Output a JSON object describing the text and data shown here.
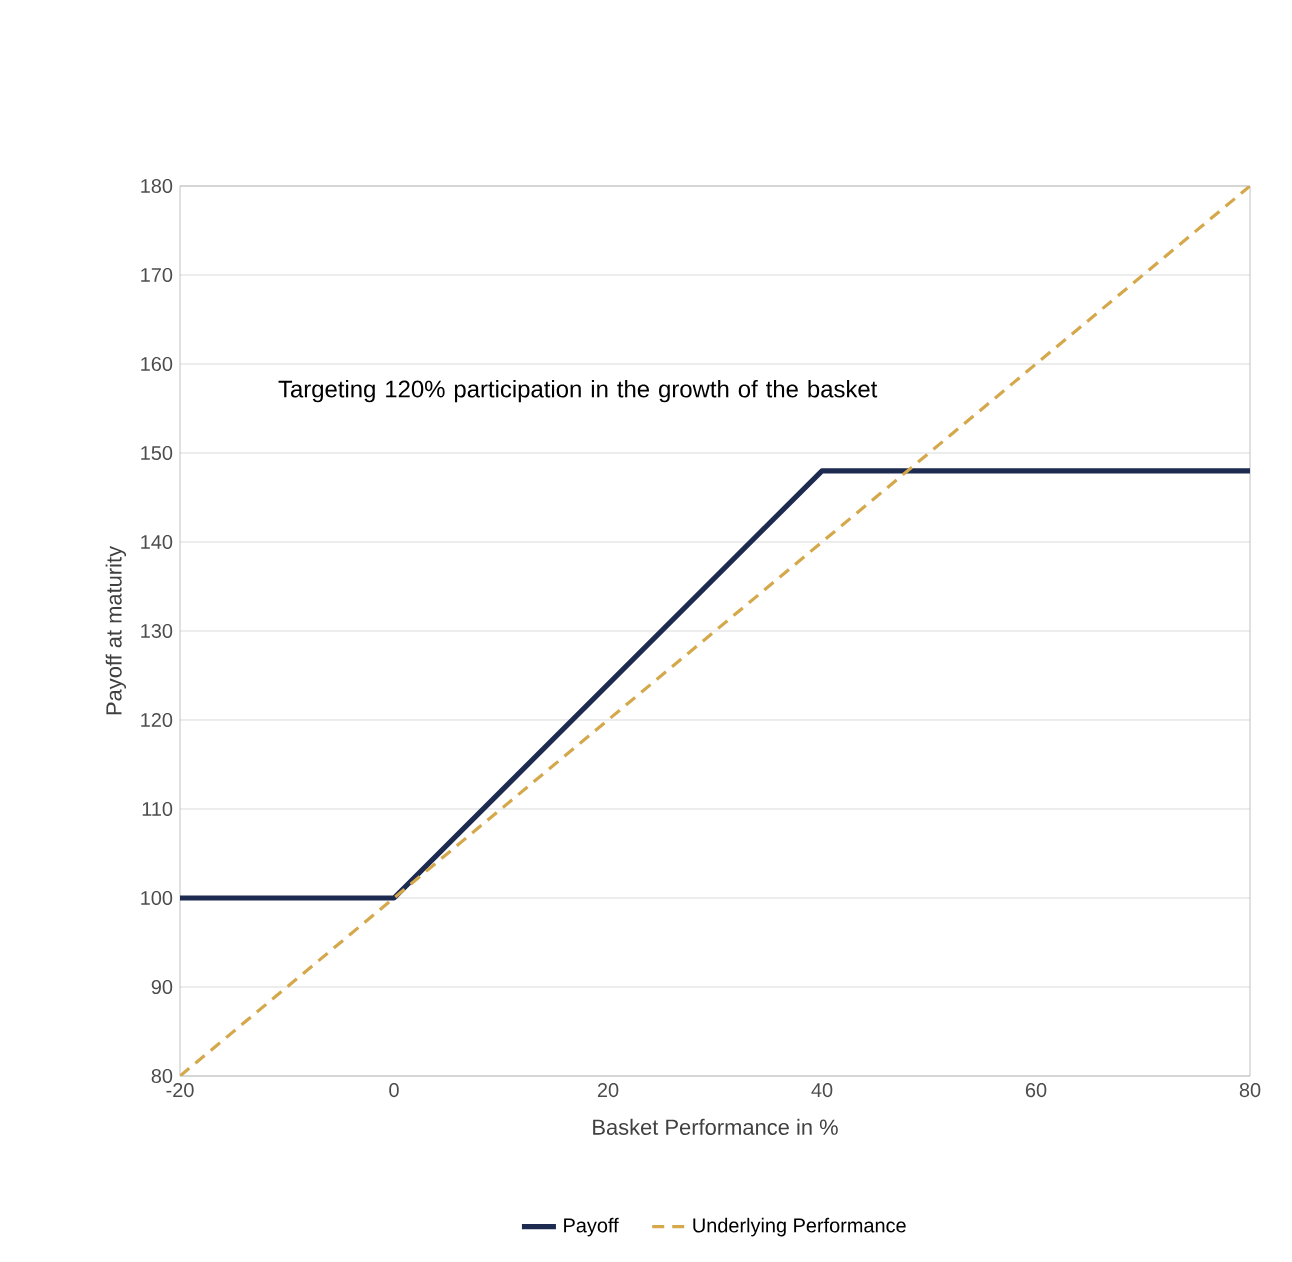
{
  "chart_data": {
    "type": "line",
    "xlabel": "Basket Performance in %",
    "ylabel": "Payoff at maturity",
    "annotations": [
      "Targeting 120% participation in the growth of the basket"
    ],
    "series": [
      {
        "name": "Payoff",
        "color": "#1d2b50",
        "x": [
          -20,
          0,
          40,
          80
        ],
        "values": [
          100,
          100,
          148,
          148
        ],
        "line_style": "solid"
      },
      {
        "name": "Underlying Performance",
        "color": "#d4a84b",
        "x": [
          -20,
          80
        ],
        "values": [
          80,
          180
        ],
        "line_style": "dashed"
      }
    ],
    "xlim": [
      -20,
      80
    ],
    "xticks": [
      -20,
      0,
      20,
      40,
      60,
      80
    ],
    "ylim": [
      80,
      180
    ],
    "yticks": [
      80,
      90,
      100,
      110,
      120,
      130,
      140,
      150,
      160,
      170,
      180
    ],
    "grid": "y",
    "legend": "bottom",
    "marker": "none"
  }
}
